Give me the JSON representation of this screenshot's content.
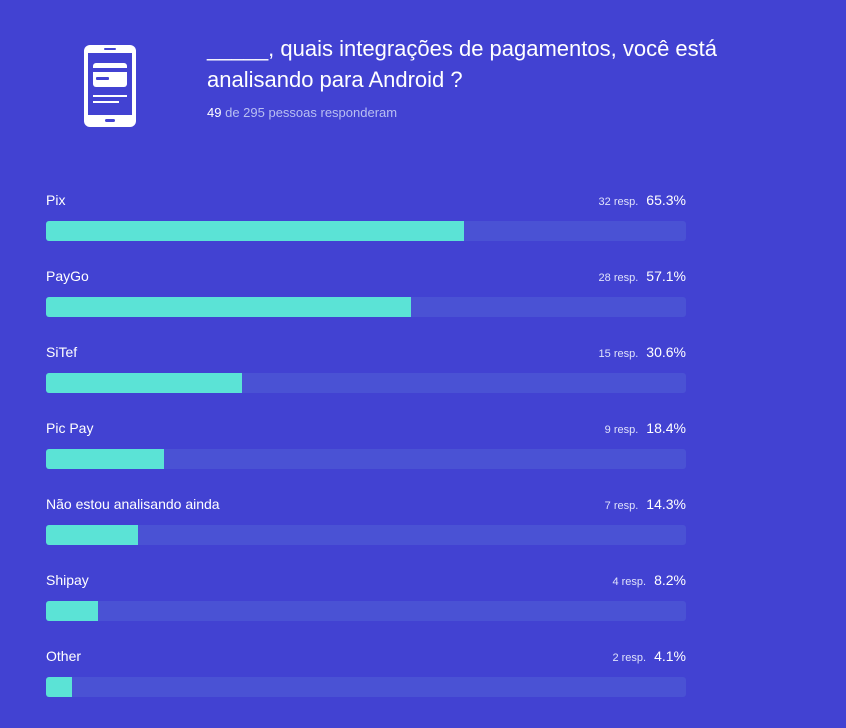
{
  "header": {
    "question": "_____, quais integrações de pagamentos, você está analisando para Android ?",
    "answered_count": "49",
    "answered_rest": "de 295 pessoas responderam"
  },
  "icons": {
    "main": "smartphone-card-icon"
  },
  "colors": {
    "background": "#4242d2",
    "bar_fill": "#5be3d6",
    "bar_track": "#4a52d4"
  },
  "chart_data": {
    "type": "bar",
    "orientation": "horizontal",
    "categories": [
      "Pix",
      "PayGo",
      "SiTef",
      "Pic Pay",
      "Não estou analisando ainda",
      "Shipay",
      "Other"
    ],
    "responses": [
      "32 resp.",
      "28 resp.",
      "15 resp.",
      "9 resp.",
      "7 resp.",
      "4 resp.",
      "2 resp."
    ],
    "percent_labels": [
      "65.3%",
      "57.1%",
      "30.6%",
      "18.4%",
      "14.3%",
      "8.2%",
      "4.1%"
    ],
    "values": [
      65.3,
      57.1,
      30.6,
      18.4,
      14.3,
      8.2,
      4.1
    ],
    "xlim": [
      0,
      100
    ],
    "grid": false,
    "legend": "none"
  }
}
